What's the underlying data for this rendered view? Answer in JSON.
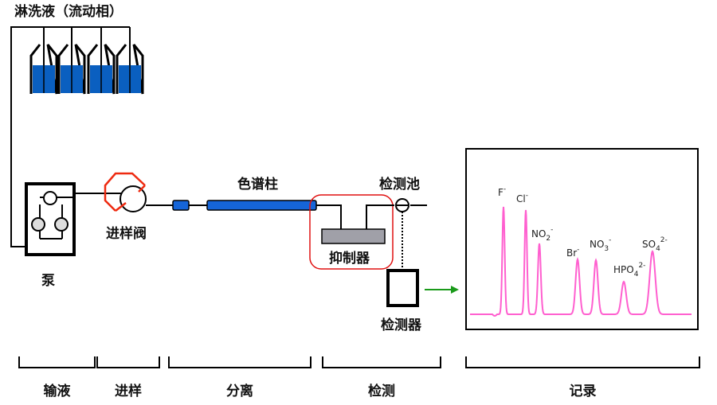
{
  "title": "淋洗液（流动相）",
  "components": {
    "pump": "泵",
    "injector": "进样阀",
    "column": "色谱柱",
    "cell": "检测池",
    "suppressor": "抑制器",
    "detector": "检测器"
  },
  "stages": [
    "输液",
    "进样",
    "分离",
    "检测",
    "记录"
  ],
  "peaks": [
    {
      "base": "F",
      "sub": "",
      "sup": "-"
    },
    {
      "base": "Cl",
      "sub": "",
      "sup": "-"
    },
    {
      "base": "NO",
      "sub": "2",
      "sup": "-"
    },
    {
      "base": "Br",
      "sub": "",
      "sup": "-"
    },
    {
      "base": "NO",
      "sub": "3",
      "sup": "-"
    },
    {
      "base": "HPO",
      "sub": "4",
      "sup": "2-"
    },
    {
      "base": "SO",
      "sub": "4",
      "sup": "2-"
    }
  ],
  "colors": {
    "eluent": "#0a5fc0",
    "column": "#1565d8",
    "highlight": "#e01010",
    "trace": "#ff5fcf",
    "arrow": "#1a9a1a",
    "suppressor": "#a0a0a8"
  }
}
